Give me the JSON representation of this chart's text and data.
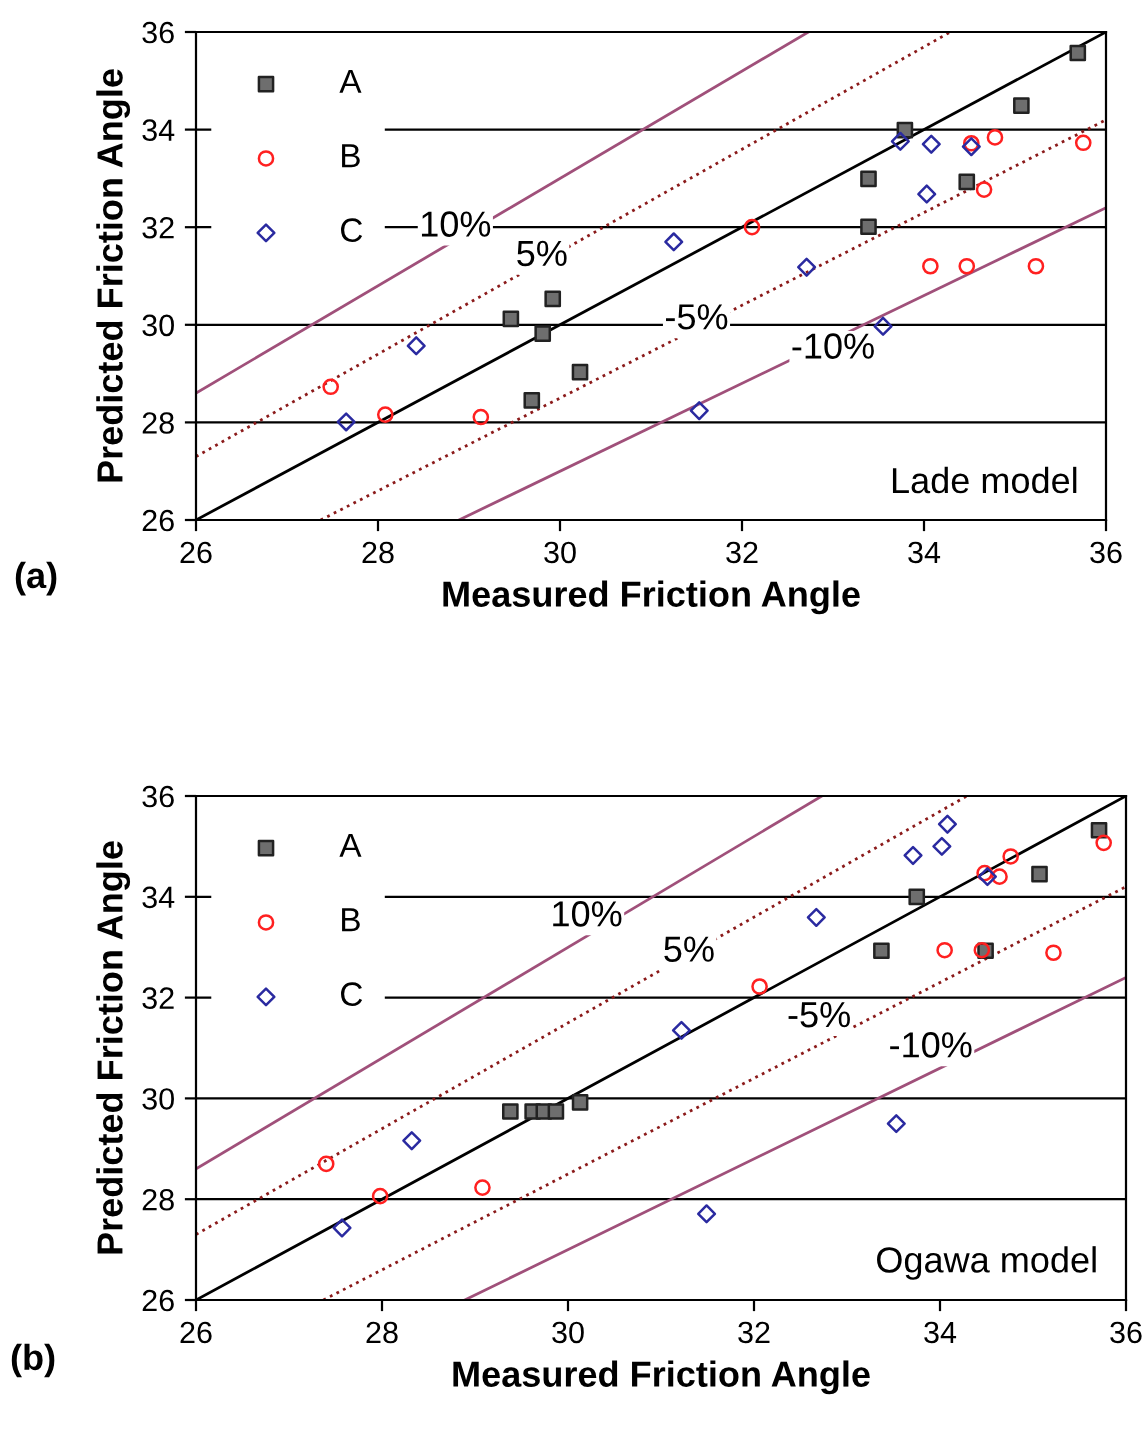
{
  "chart_data": [
    {
      "type": "scatter",
      "xlabel": "Measured Friction Angle",
      "ylabel": "Predicted Friction Angle",
      "xlim": [
        26,
        36
      ],
      "ylim": [
        26,
        36
      ],
      "xticks": [
        26,
        28,
        30,
        32,
        34,
        36
      ],
      "yticks": [
        26,
        28,
        30,
        32,
        34,
        36
      ],
      "grid": "y",
      "legend": "top left",
      "annotations": [
        "Lade model",
        "(a)",
        "10%",
        "5%",
        "-5%",
        "-10%"
      ],
      "series": [
        {
          "type": "line",
          "color": "#a0507a",
          "line_style": "solid",
          "marker": "none",
          "x": [
            26,
            32.73
          ],
          "values": [
            28.6,
            36
          ]
        },
        {
          "type": "line",
          "color": "#8b1a1a",
          "line_style": "dotted",
          "marker": "none",
          "x": [
            26,
            34.29
          ],
          "values": [
            27.3,
            36
          ]
        },
        {
          "type": "line",
          "color": "#000000",
          "line_style": "solid",
          "marker": "none",
          "x": [
            26,
            36
          ],
          "values": [
            26,
            36
          ]
        },
        {
          "type": "line",
          "color": "#8b1a1a",
          "line_style": "dotted",
          "marker": "none",
          "x": [
            27.37,
            36
          ],
          "values": [
            26,
            34.2
          ]
        },
        {
          "type": "line",
          "color": "#a0507a",
          "line_style": "solid",
          "marker": "none",
          "x": [
            28.89,
            36
          ],
          "values": [
            26,
            32.4
          ]
        },
        {
          "name": "A",
          "color": "#6e6e6e",
          "marker": "square",
          "x": [
            35.69,
            35.07,
            33.79,
            33.39,
            34.47,
            33.39,
            29.92,
            29.46,
            29.81,
            30.22,
            29.69
          ],
          "values": [
            35.57,
            34.49,
            33.99,
            32.99,
            32.93,
            32.01,
            30.53,
            30.12,
            29.82,
            29.03,
            28.45
          ]
        },
        {
          "name": "B",
          "color": "#ff2020",
          "marker": "circle",
          "x": [
            35.75,
            34.78,
            34.52,
            34.66,
            32.11,
            34.07,
            34.47,
            35.23,
            27.48,
            28.08,
            29.13
          ],
          "values": [
            33.73,
            33.84,
            33.72,
            32.77,
            32.0,
            31.2,
            31.2,
            31.2,
            28.73,
            28.16,
            28.11
          ]
        },
        {
          "name": "C",
          "color": "#2a2aa0",
          "marker": "diamond",
          "x": [
            33.74,
            34.08,
            34.52,
            34.03,
            31.25,
            32.71,
            33.55,
            28.42,
            27.65,
            31.53
          ],
          "values": [
            33.76,
            33.7,
            33.65,
            32.68,
            31.7,
            31.18,
            29.97,
            29.57,
            28.01,
            28.24
          ]
        }
      ]
    },
    {
      "type": "scatter",
      "xlabel": "Measured Friction Angle",
      "ylabel": "Predicted Friction Angle",
      "xlim": [
        26,
        36
      ],
      "ylim": [
        26,
        36
      ],
      "xticks": [
        26,
        28,
        30,
        32,
        34,
        36
      ],
      "yticks": [
        26,
        28,
        30,
        32,
        34,
        36
      ],
      "grid": "y",
      "legend": "top left",
      "annotations": [
        "Ogawa model",
        "(b)",
        "10%",
        "5%",
        "-5%",
        "-10%"
      ],
      "series": [
        {
          "type": "line",
          "color": "#a0507a",
          "line_style": "solid",
          "marker": "none",
          "x": [
            26,
            32.73
          ],
          "values": [
            28.6,
            36
          ]
        },
        {
          "type": "line",
          "color": "#8b1a1a",
          "line_style": "dotted",
          "marker": "none",
          "x": [
            26,
            34.29
          ],
          "values": [
            27.3,
            36
          ]
        },
        {
          "type": "line",
          "color": "#000000",
          "line_style": "solid",
          "marker": "none",
          "x": [
            26,
            36
          ],
          "values": [
            26,
            36
          ]
        },
        {
          "type": "line",
          "color": "#8b1a1a",
          "line_style": "dotted",
          "marker": "none",
          "x": [
            27.37,
            36
          ],
          "values": [
            26,
            34.2
          ]
        },
        {
          "type": "line",
          "color": "#a0507a",
          "line_style": "solid",
          "marker": "none",
          "x": [
            28.89,
            36
          ],
          "values": [
            26,
            32.4
          ]
        },
        {
          "name": "A",
          "color": "#6e6e6e",
          "marker": "square",
          "x": [
            35.71,
            35.07,
            33.75,
            33.37,
            34.49,
            29.38,
            29.62,
            29.74,
            29.87,
            30.13
          ],
          "values": [
            35.32,
            34.45,
            34.0,
            32.93,
            32.93,
            29.74,
            29.74,
            29.74,
            29.74,
            29.92
          ]
        },
        {
          "name": "B",
          "color": "#ff2020",
          "marker": "circle",
          "x": [
            35.76,
            34.76,
            34.48,
            34.64,
            34.05,
            34.45,
            35.22,
            32.06,
            27.4,
            27.98,
            29.08
          ],
          "values": [
            35.07,
            34.8,
            34.47,
            34.4,
            32.94,
            32.94,
            32.89,
            32.22,
            28.7,
            28.06,
            28.23
          ]
        },
        {
          "name": "C",
          "color": "#2a2aa0",
          "marker": "diamond",
          "x": [
            34.08,
            34.02,
            33.71,
            34.51,
            32.67,
            31.22,
            33.53,
            28.32,
            27.57,
            31.49
          ],
          "values": [
            35.44,
            35.0,
            34.82,
            34.4,
            33.59,
            31.35,
            29.5,
            29.16,
            27.43,
            27.71
          ]
        }
      ]
    }
  ]
}
